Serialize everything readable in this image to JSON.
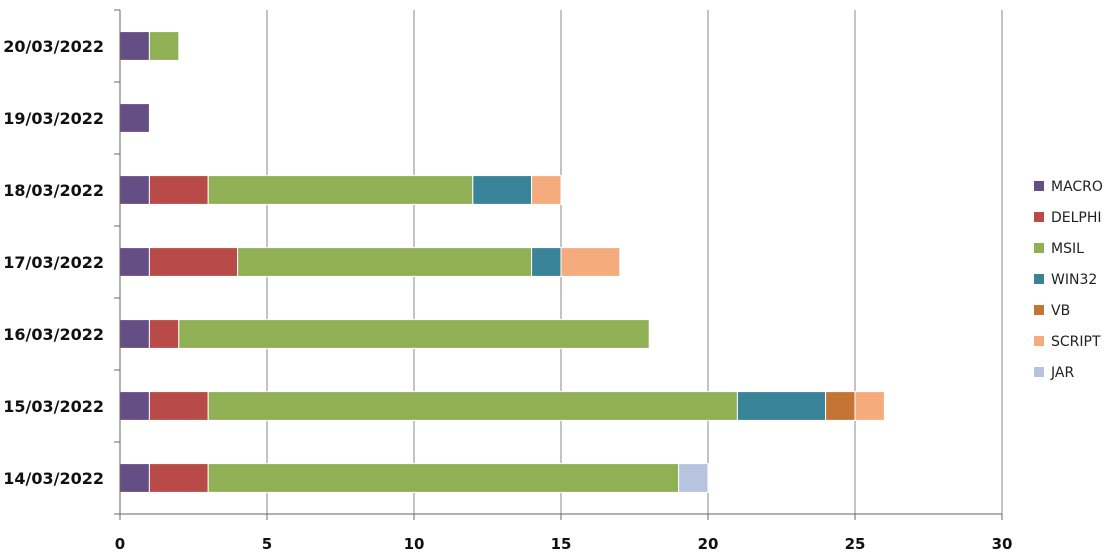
{
  "chart_data": {
    "type": "bar",
    "orientation": "horizontal",
    "stacked": true,
    "categories": [
      "20/03/2022",
      "19/03/2022",
      "18/03/2022",
      "17/03/2022",
      "16/03/2022",
      "15/03/2022",
      "14/03/2022"
    ],
    "series": [
      {
        "name": "MACRO",
        "color": "#654e84",
        "values": [
          1,
          1,
          1,
          1,
          1,
          1,
          1
        ]
      },
      {
        "name": "DELPHI",
        "color": "#b84a48",
        "values": [
          0,
          0,
          2,
          3,
          1,
          2,
          2
        ]
      },
      {
        "name": "MSIL",
        "color": "#8fb054",
        "values": [
          1,
          0,
          9,
          10,
          16,
          18,
          16
        ]
      },
      {
        "name": "WIN32",
        "color": "#3a8499",
        "values": [
          0,
          0,
          2,
          1,
          0,
          3,
          0
        ]
      },
      {
        "name": "VB",
        "color": "#c47433",
        "values": [
          0,
          0,
          0,
          0,
          0,
          1,
          0
        ]
      },
      {
        "name": "SCRIPT",
        "color": "#f6ab7c",
        "values": [
          0,
          0,
          1,
          2,
          0,
          1,
          0
        ]
      },
      {
        "name": "JAR",
        "color": "#b6c4df",
        "values": [
          0,
          0,
          0,
          0,
          0,
          0,
          1
        ]
      }
    ],
    "xlim": [
      0,
      30
    ],
    "xticks": [
      "0",
      "5",
      "10",
      "15",
      "20",
      "25",
      "30"
    ],
    "grid": "vertical",
    "legend": "right",
    "title": "",
    "xlabel": "",
    "ylabel": ""
  }
}
